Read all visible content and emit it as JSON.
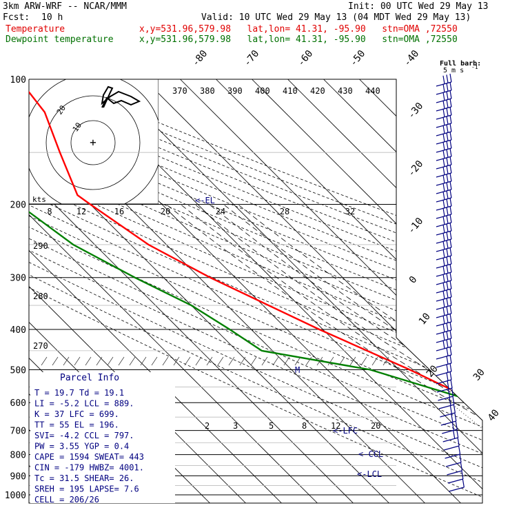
{
  "header": {
    "model": "3km ARW-WRF -- NCAR/MMM",
    "init": "Init: 00 UTC Wed 29 May 13",
    "fcst_label": "Fcst:",
    "fcst_value": "10 h",
    "valid": "Valid: 10 UTC Wed 29 May 13 (04 MDT Wed 29 May 13)",
    "temp_label": "Temperature",
    "temp_info": "x,y=531.96,579.98   lat,lon= 41.31, -95.90   stn=OMA ,72550",
    "dew_label": "Dewpoint temperature",
    "dew_info": "x,y=531.96,579.98   lat,lon= 41.31, -95.90   stn=OMA ,72550"
  },
  "colors": {
    "temperature": "#ff0000",
    "dewpoint": "#008000",
    "barbs": "#000080",
    "parcel": "#000080"
  },
  "chart_data": {
    "type": "line",
    "title": "",
    "y_axis": {
      "scale": "log",
      "ticks": [
        100,
        200,
        300,
        400,
        500,
        600,
        700,
        800,
        900,
        1000
      ]
    },
    "isotherm_labels": [
      -80,
      -70,
      -60,
      -50,
      -40,
      -30,
      -20,
      -10,
      0,
      10,
      20,
      30,
      40
    ],
    "theta_labels": [
      370,
      380,
      390,
      400,
      410,
      420,
      430,
      440
    ],
    "mixing_ratio_labels": [
      "2",
      "3",
      "5",
      "8",
      "12",
      "20"
    ],
    "dry_adiabat_labels": [
      "290",
      "280",
      "270"
    ],
    "series": [
      {
        "name": "Temperature",
        "points": [
          [
            100,
            -45
          ],
          [
            120,
            -47
          ],
          [
            150,
            -54
          ],
          [
            190,
            -61
          ],
          [
            200,
            -60
          ],
          [
            250,
            -55
          ],
          [
            300,
            -47
          ],
          [
            400,
            -31
          ],
          [
            500,
            -17
          ],
          [
            600,
            -7
          ],
          [
            700,
            3
          ],
          [
            800,
            13.5
          ],
          [
            850,
            17
          ],
          [
            880,
            18.2
          ],
          [
            900,
            17.4
          ],
          [
            930,
            18.8
          ],
          [
            960,
            19.7
          ]
        ]
      },
      {
        "name": "Dewpoint temperature",
        "points": [
          [
            100,
            -64
          ],
          [
            130,
            -72
          ],
          [
            150,
            -77
          ],
          [
            180,
            -81
          ],
          [
            200,
            -80
          ],
          [
            250,
            -76
          ],
          [
            300,
            -68
          ],
          [
            350,
            -60
          ],
          [
            400,
            -56
          ],
          [
            450,
            -53
          ],
          [
            500,
            -28
          ],
          [
            600,
            -7
          ],
          [
            700,
            4.5
          ],
          [
            800,
            11.5
          ],
          [
            850,
            13
          ],
          [
            880,
            16
          ],
          [
            900,
            18.5
          ],
          [
            940,
            18.8
          ],
          [
            960,
            19.1
          ]
        ]
      }
    ],
    "hodograph": {
      "ring_labels": [
        "10",
        "20"
      ],
      "axis_label": "kts",
      "speed_ticks": [
        "8",
        "12",
        "16",
        "20",
        "24",
        "28",
        "32"
      ]
    },
    "annotations": {
      "el": "<-EL",
      "lfc": "<-LFC",
      "ccl": "<-CCL",
      "lcl": "<-LCL",
      "m": "M"
    },
    "barb_key": {
      "title": "Full barb:",
      "value": "5 m s",
      "exponent": "-1"
    }
  },
  "parcel_info": {
    "title": "Parcel Info",
    "rows": [
      "T  =   19.7  Td =  19.1",
      "LI =   -5.2  LCL =  889.",
      "K  =     37  LFC =  699.",
      "TT =     55  EL  =  196.",
      "SVI=   -4.2  CCL =  797.",
      "PW =   3.55  YGP =   0.4",
      "CAPE =  1594  SWEAT=  443",
      "CIN  =  -179  HWBZ= 4001.",
      "Tc   =  31.5  SHEAR=  26.",
      "SREH =   195  LAPSE=  7.6",
      "CELL = 206/26"
    ]
  }
}
